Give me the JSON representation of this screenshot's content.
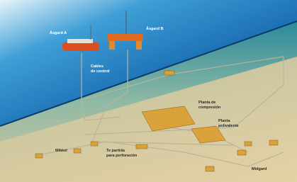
{
  "labels": {
    "asgard_a": "Åsgard A",
    "asgard_b": "Åsgard B",
    "cables": [
      "Cables",
      "de control"
    ],
    "compresion": [
      "Planta de",
      "compresión"
    ],
    "polivalente": [
      "Planta",
      "polivalente"
    ],
    "mikkel": "Mikkel",
    "te_partida": [
      "Te partida",
      "para perforación"
    ],
    "midgard": "Midgard"
  }
}
